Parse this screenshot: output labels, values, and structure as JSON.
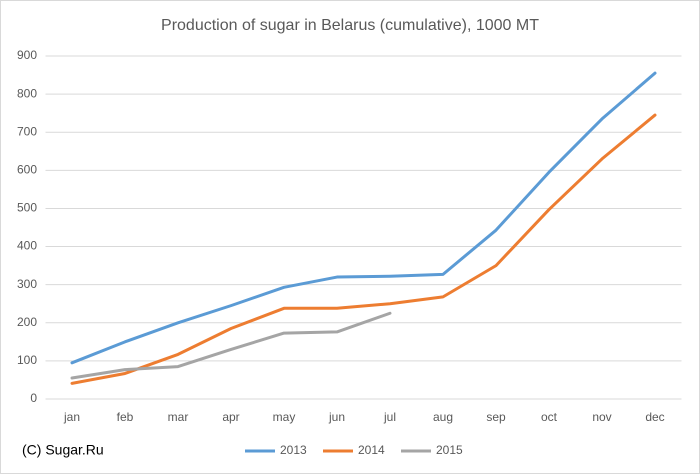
{
  "chart_data": {
    "type": "line",
    "title": "Production of sugar in Belarus (cumulative), 1000 MT",
    "categories": [
      "jan",
      "feb",
      "mar",
      "apr",
      "may",
      "jun",
      "jul",
      "aug",
      "sep",
      "oct",
      "nov",
      "dec"
    ],
    "series": [
      {
        "name": "2013",
        "color": "#5b9bd5",
        "values": [
          95,
          150,
          200,
          245,
          293,
          320,
          322,
          327,
          443,
          595,
          735,
          855
        ]
      },
      {
        "name": "2014",
        "color": "#ed7d31",
        "values": [
          41,
          67,
          117,
          185,
          238,
          238,
          250,
          268,
          350,
          497,
          630,
          745
        ]
      },
      {
        "name": "2015",
        "color": "#a5a5a5",
        "values": [
          55,
          77,
          85,
          130,
          173,
          176,
          225,
          null,
          null,
          null,
          null,
          null
        ]
      }
    ],
    "ylim": [
      0,
      900
    ],
    "yticks": [
      0,
      100,
      200,
      300,
      400,
      500,
      600,
      700,
      800,
      900
    ],
    "grid": true,
    "legend": "bottom",
    "annotation": "(C) Sugar.Ru"
  }
}
